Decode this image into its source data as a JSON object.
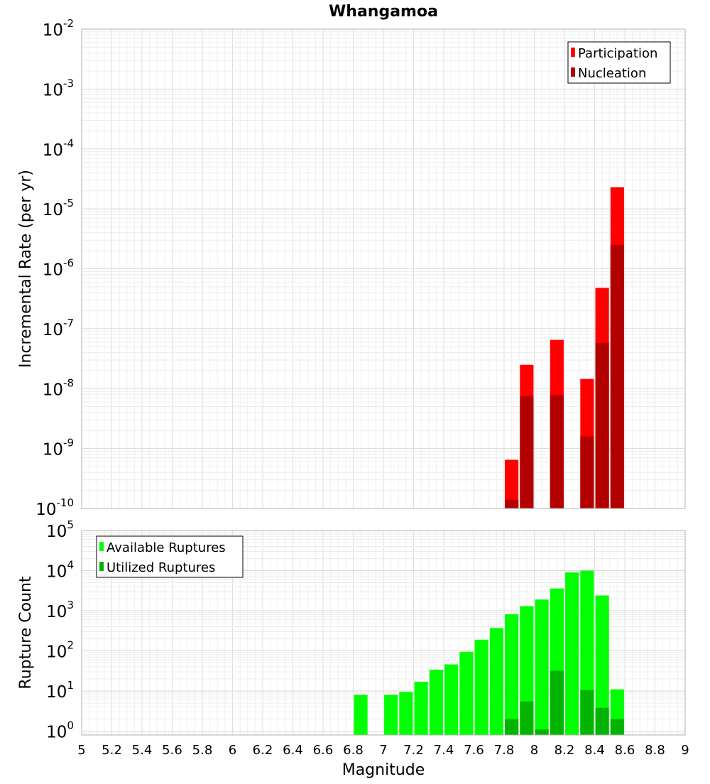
{
  "chart_data": [
    {
      "type": "bar",
      "title": "Whangamoa",
      "xlabel": "",
      "ylabel": "Incremental Rate (per yr)",
      "yscale": "log",
      "ylim": [
        1e-10,
        0.01
      ],
      "xlim": [
        5,
        9
      ],
      "y_tick_bases": [
        "10",
        "10",
        "10",
        "10",
        "10",
        "10",
        "10",
        "10",
        "10"
      ],
      "y_tick_exponents": [
        "-10",
        "-9",
        "-8",
        "-7",
        "-6",
        "-5",
        "-4",
        "-3",
        "-2"
      ],
      "legend_position": "top-right",
      "legend_entries": [
        "Participation",
        "Nucleation"
      ],
      "bar_width": 0.09,
      "series": [
        {
          "name": "Participation",
          "color": "#ff0000",
          "x": [
            7.85,
            7.95,
            8.15,
            8.35,
            8.45,
            8.55
          ],
          "values": [
            6.5e-10,
            2.5e-08,
            6.5e-08,
            1.45e-08,
            4.8e-07,
            2.3e-05
          ]
        },
        {
          "name": "Nucleation",
          "color": "#b20000",
          "x": [
            7.85,
            7.95,
            8.15,
            8.35,
            8.45,
            8.55
          ],
          "values": [
            1.4e-10,
            7.5e-09,
            7.8e-09,
            1.6e-09,
            5.8e-08,
            2.5e-06
          ]
        }
      ]
    },
    {
      "type": "bar",
      "title": "",
      "xlabel": "Magnitude",
      "ylabel": "Rupture Count",
      "yscale": "log",
      "ylim": [
        0.8,
        100000.0
      ],
      "xlim": [
        5,
        9
      ],
      "y_tick_bases": [
        "10",
        "10",
        "10",
        "10",
        "10",
        "10"
      ],
      "y_tick_exponents": [
        "0",
        "1",
        "2",
        "3",
        "4",
        "5"
      ],
      "x_ticks": [
        "5",
        "5.2",
        "5.4",
        "5.6",
        "5.8",
        "6",
        "6.2",
        "6.4",
        "6.6",
        "6.8",
        "7",
        "7.2",
        "7.4",
        "7.6",
        "7.8",
        "8",
        "8.2",
        "8.4",
        "8.6",
        "8.8",
        "9"
      ],
      "legend_position": "top-left",
      "legend_entries": [
        "Available Ruptures",
        "Utilized Ruptures"
      ],
      "bar_width": 0.09,
      "series": [
        {
          "name": "Available Ruptures",
          "color": "#00ff00",
          "x": [
            6.85,
            7.05,
            7.15,
            7.25,
            7.35,
            7.45,
            7.55,
            7.65,
            7.75,
            7.85,
            7.95,
            8.05,
            8.15,
            8.25,
            8.35,
            8.45,
            8.55
          ],
          "values": [
            8,
            8,
            9.5,
            17,
            34,
            46,
            95,
            190,
            370,
            820,
            1300,
            1900,
            3600,
            9000,
            10000,
            2400,
            11
          ]
        },
        {
          "name": "Utilized Ruptures",
          "color": "#00b400",
          "x": [
            7.85,
            7.95,
            8.05,
            8.15,
            8.35,
            8.45,
            8.55
          ],
          "values": [
            2,
            5.5,
            1.1,
            32,
            10.5,
            3.8,
            2
          ]
        }
      ]
    }
  ]
}
